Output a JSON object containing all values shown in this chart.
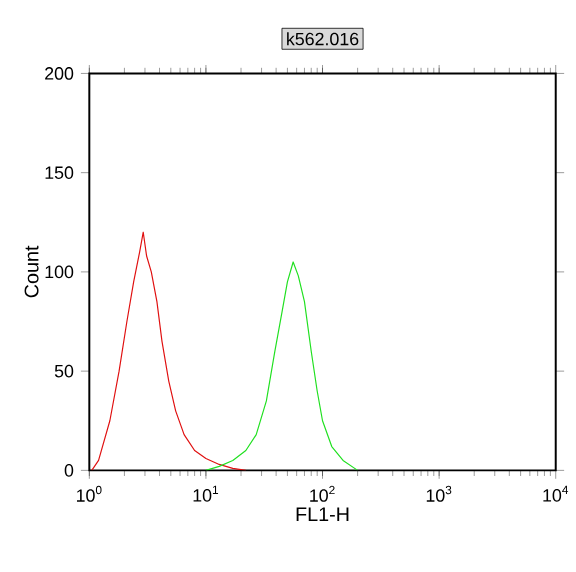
{
  "chart_data": {
    "type": "line",
    "title": "k562.016",
    "xlabel": "FL1-H",
    "ylabel": "Count",
    "log": "x",
    "xlim": [
      1,
      10000
    ],
    "ylim": [
      0,
      200
    ],
    "xticks": [
      {
        "value": 1,
        "label": "10$^{0}$"
      },
      {
        "value": 10,
        "label": "10$^{1}$"
      },
      {
        "value": 100,
        "label": "10$^{2}$"
      },
      {
        "value": 1000,
        "label": "10$^{3}$"
      },
      {
        "value": 10000,
        "label": "10$^{4}$"
      }
    ],
    "yticks": [
      0,
      50,
      100,
      150,
      200
    ],
    "series": [
      {
        "color": "#e01010",
        "x": [
          1.05,
          1.2,
          1.5,
          1.8,
          2.1,
          2.4,
          2.7,
          2.9,
          3.1,
          3.4,
          3.8,
          4.2,
          4.8,
          5.5,
          6.5,
          8,
          10,
          13,
          17,
          22
        ],
        "values": [
          0,
          5,
          25,
          50,
          75,
          95,
          110,
          120,
          108,
          100,
          85,
          65,
          45,
          30,
          18,
          10,
          6,
          3,
          1,
          0
        ]
      },
      {
        "color": "#20e020",
        "x": [
          10,
          13,
          17,
          22,
          27,
          33,
          39,
          45,
          50,
          56,
          62,
          70,
          80,
          90,
          100,
          120,
          150,
          200
        ],
        "values": [
          0,
          2,
          5,
          10,
          18,
          35,
          60,
          80,
          95,
          105,
          98,
          85,
          60,
          40,
          25,
          12,
          5,
          0
        ]
      }
    ]
  }
}
